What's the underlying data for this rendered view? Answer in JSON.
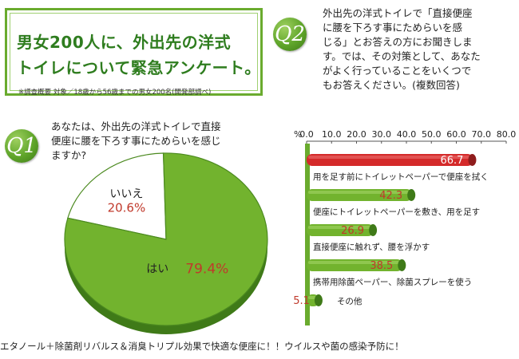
{
  "title": {
    "line1": "男女200人に、外出先の洋式",
    "line2": "トイレについて緊急アンケート。",
    "note": "※調査概要 対象／18歳から56歳までの男女200名(開発部調べ)"
  },
  "q1": {
    "badge": "Q1",
    "lines": [
      "あなたは、外出先の洋式トイレで直接",
      "便座に腰を下ろす事にためらいを感じ",
      "ますか?"
    ]
  },
  "q2": {
    "badge": "Q2",
    "lines": [
      "外出先の洋式トイレで「直接便座",
      "に腰を下ろす事にためらいを感",
      "じる」とお答えの方にお聞きしま",
      "す。では、その対策として、あなた",
      "がよく行っていることをいくつで",
      "もお答えください。(複数回答)"
    ]
  },
  "footer": "エタノール＋除菌剤リバルス＆消臭トリプル効果で快適な便座に！！ウイルスや菌の感染予防に！",
  "colors": {
    "green": "#72b32e",
    "red": "#d42a2a",
    "value_text": "#c0392b",
    "title_green": "#2f7d1f"
  },
  "chart_data": [
    {
      "type": "pie",
      "slices": [
        {
          "label": "はい",
          "value": 79.4,
          "display": "79.4%",
          "color": "#72b32e"
        },
        {
          "label": "いいえ",
          "value": 20.6,
          "display": "20.6%",
          "color": "#ffffff"
        }
      ]
    },
    {
      "type": "bar",
      "orientation": "horizontal",
      "axis_unit": "%",
      "ticks": [
        "0.0",
        "10.0",
        "20.0",
        "30.0",
        "40.0",
        "50.0",
        "60.0",
        "70.0",
        "80.0"
      ],
      "xlim": [
        0,
        80
      ],
      "categories": [
        "用を足す前にトイレットペーパーで便座を拭く",
        "便座にトイレットペーパーを敷き、用を足す",
        "直接便座に触れず、腰を浮かす",
        "携帯用除菌ペーパー、除菌スプレーを使う",
        "その他"
      ],
      "values": [
        66.7,
        42.3,
        26.9,
        38.5,
        5.1
      ],
      "labels": [
        "66.7",
        "42.3",
        "26.9",
        "38.5",
        "5.1"
      ],
      "highlight_index": 0
    }
  ]
}
